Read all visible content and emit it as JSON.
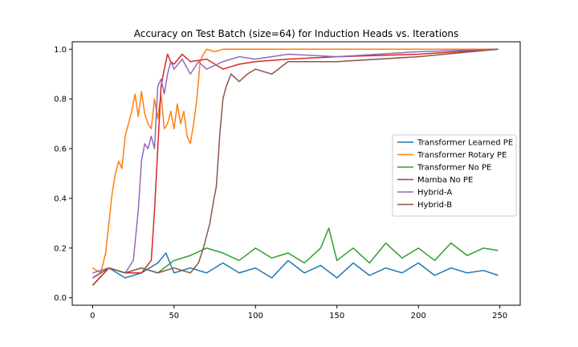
{
  "chart_data": {
    "type": "line",
    "title": "Accuracy on Test Batch (size=64) for Induction Heads vs. Iterations",
    "xlabel": "",
    "ylabel": "",
    "xlim": [
      -12.5,
      262.5
    ],
    "ylim": [
      -0.03,
      1.03
    ],
    "xticks": [
      0,
      50,
      100,
      150,
      200,
      250
    ],
    "yticks": [
      0.0,
      0.2,
      0.4,
      0.6,
      0.8,
      1.0
    ],
    "xtick_labels": [
      "0",
      "50",
      "100",
      "150",
      "200",
      "250"
    ],
    "ytick_labels": [
      "0.0",
      "0.2",
      "0.4",
      "0.6",
      "0.8",
      "1.0"
    ],
    "grid": false,
    "legend_position": "center-right",
    "series": [
      {
        "name": "Transformer Learned PE",
        "color": "#1f77b4",
        "x": [
          0,
          10,
          20,
          30,
          40,
          45,
          50,
          60,
          70,
          80,
          90,
          100,
          110,
          120,
          130,
          140,
          150,
          160,
          170,
          180,
          190,
          200,
          210,
          220,
          230,
          240,
          249
        ],
        "y": [
          0.05,
          0.12,
          0.08,
          0.1,
          0.14,
          0.18,
          0.1,
          0.12,
          0.1,
          0.14,
          0.1,
          0.12,
          0.08,
          0.15,
          0.1,
          0.13,
          0.08,
          0.14,
          0.09,
          0.12,
          0.1,
          0.14,
          0.09,
          0.12,
          0.1,
          0.11,
          0.09
        ]
      },
      {
        "name": "Transformer Rotary PE",
        "color": "#ff7f0e",
        "x": [
          0,
          5,
          8,
          10,
          12,
          14,
          16,
          18,
          20,
          22,
          24,
          26,
          28,
          30,
          32,
          34,
          36,
          38,
          40,
          42,
          44,
          46,
          48,
          50,
          52,
          54,
          56,
          58,
          60,
          62,
          64,
          66,
          68,
          70,
          75,
          80,
          90,
          100,
          120,
          150,
          200,
          249
        ],
        "y": [
          0.12,
          0.1,
          0.18,
          0.3,
          0.42,
          0.5,
          0.55,
          0.52,
          0.65,
          0.7,
          0.75,
          0.82,
          0.73,
          0.83,
          0.74,
          0.7,
          0.68,
          0.8,
          0.72,
          0.82,
          0.68,
          0.7,
          0.75,
          0.68,
          0.78,
          0.7,
          0.75,
          0.65,
          0.62,
          0.7,
          0.8,
          0.95,
          0.98,
          1.0,
          0.99,
          1.0,
          1.0,
          1.0,
          1.0,
          1.0,
          1.0,
          1.0
        ]
      },
      {
        "name": "Transformer No PE",
        "color": "#2ca02c",
        "x": [
          0,
          10,
          20,
          30,
          40,
          50,
          60,
          70,
          80,
          90,
          100,
          110,
          120,
          130,
          140,
          145,
          150,
          160,
          170,
          180,
          190,
          200,
          210,
          220,
          230,
          240,
          249
        ],
        "y": [
          0.08,
          0.12,
          0.1,
          0.12,
          0.1,
          0.15,
          0.17,
          0.2,
          0.18,
          0.15,
          0.2,
          0.16,
          0.18,
          0.14,
          0.2,
          0.28,
          0.15,
          0.2,
          0.14,
          0.22,
          0.16,
          0.2,
          0.15,
          0.22,
          0.17,
          0.2,
          0.19
        ]
      },
      {
        "name": "Mamba No PE",
        "color": "#d62728",
        "x": [
          0,
          10,
          20,
          30,
          36,
          38,
          40,
          42,
          44,
          46,
          48,
          50,
          55,
          60,
          70,
          80,
          90,
          100,
          120,
          150,
          200,
          249
        ],
        "y": [
          0.05,
          0.12,
          0.1,
          0.1,
          0.15,
          0.35,
          0.6,
          0.85,
          0.92,
          0.98,
          0.95,
          0.94,
          0.98,
          0.95,
          0.96,
          0.92,
          0.94,
          0.95,
          0.96,
          0.97,
          0.98,
          1.0
        ]
      },
      {
        "name": "Hybrid-A",
        "color": "#9467bd",
        "x": [
          0,
          10,
          20,
          25,
          28,
          30,
          32,
          34,
          36,
          38,
          40,
          42,
          44,
          46,
          48,
          50,
          55,
          60,
          65,
          70,
          80,
          90,
          100,
          120,
          150,
          200,
          249
        ],
        "y": [
          0.1,
          0.12,
          0.1,
          0.15,
          0.35,
          0.55,
          0.62,
          0.6,
          0.65,
          0.6,
          0.85,
          0.88,
          0.82,
          0.9,
          0.95,
          0.92,
          0.96,
          0.9,
          0.95,
          0.92,
          0.95,
          0.97,
          0.96,
          0.98,
          0.97,
          0.99,
          1.0
        ]
      },
      {
        "name": "Hybrid-B",
        "color": "#8c564b",
        "x": [
          0,
          10,
          20,
          30,
          40,
          50,
          60,
          65,
          68,
          70,
          72,
          74,
          76,
          78,
          80,
          82,
          85,
          90,
          95,
          100,
          110,
          120,
          150,
          200,
          249
        ],
        "y": [
          0.08,
          0.12,
          0.1,
          0.12,
          0.1,
          0.12,
          0.1,
          0.14,
          0.2,
          0.25,
          0.3,
          0.38,
          0.45,
          0.65,
          0.8,
          0.85,
          0.9,
          0.87,
          0.9,
          0.92,
          0.9,
          0.95,
          0.95,
          0.97,
          1.0
        ]
      }
    ]
  }
}
